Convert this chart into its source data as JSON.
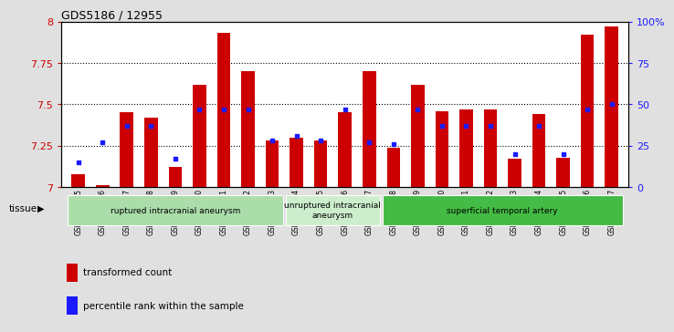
{
  "title": "GDS5186 / 12955",
  "samples": [
    "GSM1306885",
    "GSM1306886",
    "GSM1306887",
    "GSM1306888",
    "GSM1306889",
    "GSM1306890",
    "GSM1306891",
    "GSM1306892",
    "GSM1306893",
    "GSM1306894",
    "GSM1306895",
    "GSM1306896",
    "GSM1306897",
    "GSM1306898",
    "GSM1306899",
    "GSM1306900",
    "GSM1306901",
    "GSM1306902",
    "GSM1306903",
    "GSM1306904",
    "GSM1306905",
    "GSM1306906",
    "GSM1306907"
  ],
  "bar_values": [
    7.08,
    7.01,
    7.45,
    7.42,
    7.12,
    7.62,
    7.93,
    7.7,
    7.28,
    7.3,
    7.28,
    7.45,
    7.7,
    7.24,
    7.62,
    7.46,
    7.47,
    7.47,
    7.17,
    7.44,
    7.18,
    7.92,
    7.97
  ],
  "percentile_values": [
    7.15,
    7.27,
    7.37,
    7.37,
    7.17,
    7.47,
    7.47,
    7.47,
    7.28,
    7.31,
    7.28,
    7.47,
    7.27,
    7.26,
    7.47,
    7.37,
    7.37,
    7.37,
    7.2,
    7.37,
    7.2,
    7.47,
    7.5
  ],
  "ylim": [
    7.0,
    8.0
  ],
  "yticks": [
    7.0,
    7.25,
    7.5,
    7.75,
    8.0
  ],
  "ytick_labels": [
    "7",
    "7.25",
    "7.5",
    "7.75",
    "8"
  ],
  "right_yticks": [
    0,
    25,
    50,
    75,
    100
  ],
  "right_ytick_labels": [
    "0",
    "25",
    "50",
    "75",
    "100%"
  ],
  "bar_color": "#cc0000",
  "dot_color": "#1a1aff",
  "background_color": "#e0e0e0",
  "plot_bg_color": "#ffffff",
  "tissue_groups": [
    {
      "label": "ruptured intracranial aneurysm",
      "start": 0,
      "end": 8,
      "color": "#aaddaa"
    },
    {
      "label": "unruptured intracranial\naneurysm",
      "start": 9,
      "end": 12,
      "color": "#cceecc"
    },
    {
      "label": "superficial temporal artery",
      "start": 13,
      "end": 22,
      "color": "#44bb44"
    }
  ],
  "legend_labels": [
    "transformed count",
    "percentile rank within the sample"
  ],
  "legend_colors": [
    "#cc0000",
    "#1a1aff"
  ],
  "tissue_label": "tissue",
  "grid_color": "#000000"
}
